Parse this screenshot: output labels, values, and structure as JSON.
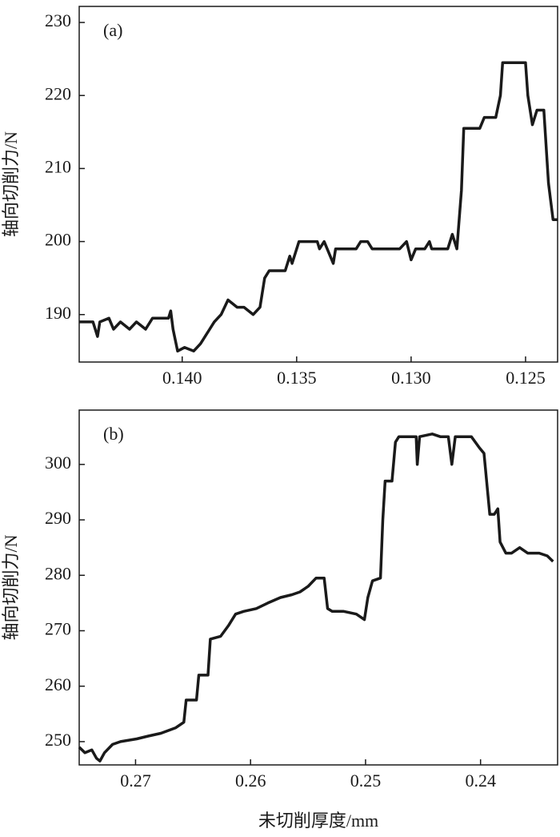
{
  "chart_data": [
    {
      "type": "line",
      "annotation": "(a)",
      "ylabel": "轴向切削力/N",
      "x": [
        0.1445,
        0.1439,
        0.1437,
        0.1436,
        0.1432,
        0.143,
        0.1427,
        0.1423,
        0.142,
        0.1416,
        0.1413,
        0.1406,
        0.1405,
        0.1404,
        0.1402,
        0.1399,
        0.1395,
        0.1392,
        0.1388,
        0.1386,
        0.1383,
        0.138,
        0.1376,
        0.1373,
        0.1369,
        0.1366,
        0.1364,
        0.1362,
        0.1355,
        0.1353,
        0.1352,
        0.1349,
        0.1341,
        0.134,
        0.1338,
        0.1334,
        0.1333,
        0.1324,
        0.1322,
        0.1319,
        0.1317,
        0.1305,
        0.1302,
        0.13,
        0.1298,
        0.1294,
        0.1292,
        0.1291,
        0.1284,
        0.1282,
        0.128,
        0.1278,
        0.1277,
        0.127,
        0.1268,
        0.1263,
        0.1261,
        0.126,
        0.125,
        0.1249,
        0.1247,
        0.1245,
        0.1242,
        0.124,
        0.1238,
        0.1236
      ],
      "series": [
        {
          "color": "#1a1a1a",
          "values": [
            189,
            189,
            187,
            189,
            189.5,
            188,
            189,
            188,
            189,
            188,
            189.5,
            189.5,
            190.5,
            188,
            185,
            185.5,
            185,
            186,
            188,
            189,
            190,
            192,
            191,
            191,
            190,
            191,
            195,
            196,
            196,
            198,
            197,
            200,
            200,
            199,
            200,
            197,
            199,
            199,
            200,
            200,
            199,
            199,
            200,
            197.5,
            199,
            199,
            200,
            199,
            199,
            201,
            199,
            207,
            215.5,
            215.5,
            217,
            217,
            220,
            224.5,
            224.5,
            220,
            216,
            218,
            218,
            208,
            203,
            203
          ]
        }
      ],
      "xlim": [
        0.1445,
        0.1236
      ],
      "ylim": [
        183.5,
        232.2
      ],
      "xticks": [
        {
          "value": 0.14,
          "label": "0.140"
        },
        {
          "value": 0.135,
          "label": "0.135"
        },
        {
          "value": 0.13,
          "label": "0.130"
        },
        {
          "value": 0.125,
          "label": "0.125"
        }
      ],
      "yticks": [
        190,
        200,
        210,
        220,
        230
      ]
    },
    {
      "type": "line",
      "annotation": "(b)",
      "ylabel": "轴向切削力/N",
      "xlabel": "未切削厚度/mm",
      "x": [
        0.2749,
        0.2744,
        0.2738,
        0.2734,
        0.2731,
        0.2727,
        0.272,
        0.2713,
        0.2699,
        0.2689,
        0.2678,
        0.2665,
        0.2658,
        0.2656,
        0.2647,
        0.2645,
        0.2637,
        0.2635,
        0.2626,
        0.2619,
        0.2613,
        0.2606,
        0.2595,
        0.2585,
        0.2574,
        0.2564,
        0.2557,
        0.255,
        0.2543,
        0.2536,
        0.2533,
        0.2529,
        0.2519,
        0.2508,
        0.2501,
        0.2498,
        0.2494,
        0.2487,
        0.2485,
        0.2483,
        0.2477,
        0.2474,
        0.2471,
        0.2456,
        0.2455,
        0.2453,
        0.2442,
        0.2435,
        0.2428,
        0.2425,
        0.2422,
        0.2408,
        0.2401,
        0.2397,
        0.2392,
        0.2388,
        0.2385,
        0.2383,
        0.2378,
        0.2373,
        0.2366,
        0.2359,
        0.2349,
        0.2342,
        0.2337
      ],
      "series": [
        {
          "color": "#1a1a1a",
          "values": [
            249,
            248,
            248.5,
            247,
            246.5,
            248,
            249.5,
            250,
            250.5,
            251,
            251.5,
            252.5,
            253.5,
            257.5,
            257.5,
            262,
            262,
            268.5,
            269,
            271,
            273,
            273.5,
            274,
            275,
            276,
            276.5,
            277,
            278,
            279.5,
            279.5,
            274,
            273.5,
            273.5,
            273,
            272,
            276,
            279,
            279.5,
            290,
            297,
            297,
            304,
            305,
            305,
            300,
            305,
            305.5,
            305,
            305,
            300,
            305,
            305,
            303,
            302,
            291,
            291,
            292,
            286,
            284,
            284,
            285,
            284,
            284,
            283.5,
            282.5
          ]
        }
      ],
      "xlim": [
        0.2749,
        0.2333
      ],
      "ylim": [
        245.8,
        309.8
      ],
      "xticks": [
        0.27,
        0.26,
        0.25,
        0.24
      ],
      "yticks": [
        250,
        260,
        270,
        280,
        290,
        300
      ]
    }
  ]
}
